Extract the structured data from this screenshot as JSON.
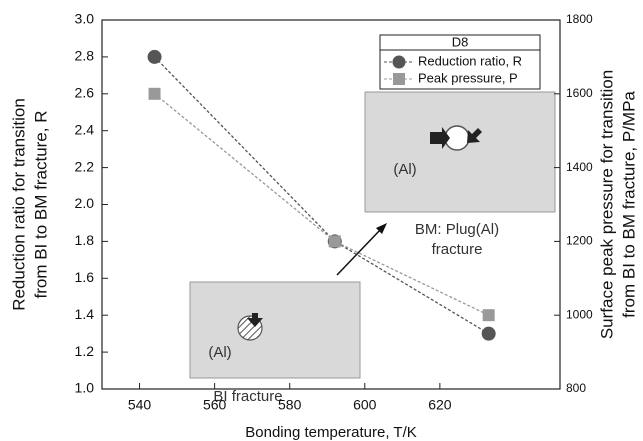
{
  "chart_data": {
    "type": "line",
    "xlabel": "Bonding temperature, T/K",
    "ylabel": [
      "Reduction ratio for transition",
      "from BI to BM fracture, R"
    ],
    "y2label": [
      "Surface peak pressure for transition",
      "from BI to BM fracture, P/MPa"
    ],
    "x": [
      544,
      592,
      633
    ],
    "series": [
      {
        "name": "Reduction ratio, R",
        "color": "#555555",
        "marker": "circle",
        "values": [
          2.8,
          1.8,
          1.3
        ]
      },
      {
        "name": "Peak pressure, P",
        "color": "#999999",
        "marker": "square",
        "axis": "y2",
        "values": [
          1600,
          1200,
          1000
        ]
      }
    ],
    "xlim": [
      530,
      652
    ],
    "xticks": [
      540,
      560,
      580,
      600,
      620
    ],
    "ylim": [
      1.0,
      3.0
    ],
    "yticks": [
      {
        "value": 1.0,
        "label": "1.0"
      },
      {
        "value": 1.2,
        "label": "1.2"
      },
      {
        "value": 1.4,
        "label": "1.4"
      },
      {
        "value": 1.6,
        "label": "1.6"
      },
      {
        "value": 1.8,
        "label": "1.8"
      },
      {
        "value": 2.0,
        "label": "2.0"
      },
      {
        "value": 2.2,
        "label": "2.2"
      },
      {
        "value": 2.4,
        "label": "2.4"
      },
      {
        "value": 2.6,
        "label": "2.6"
      },
      {
        "value": 2.8,
        "label": "2.8"
      },
      {
        "value": 3.0,
        "label": "3.0"
      }
    ],
    "y2lim": [
      800,
      1800
    ],
    "y2ticks": [
      800,
      1000,
      1200,
      1400,
      1600,
      1800
    ],
    "legend_title": "D8",
    "legend_position": "upper right",
    "grid": false,
    "annotations": [
      "(Al)",
      "BM: Plug(Al)",
      "fracture",
      "(Al)",
      "BI fracture"
    ]
  }
}
